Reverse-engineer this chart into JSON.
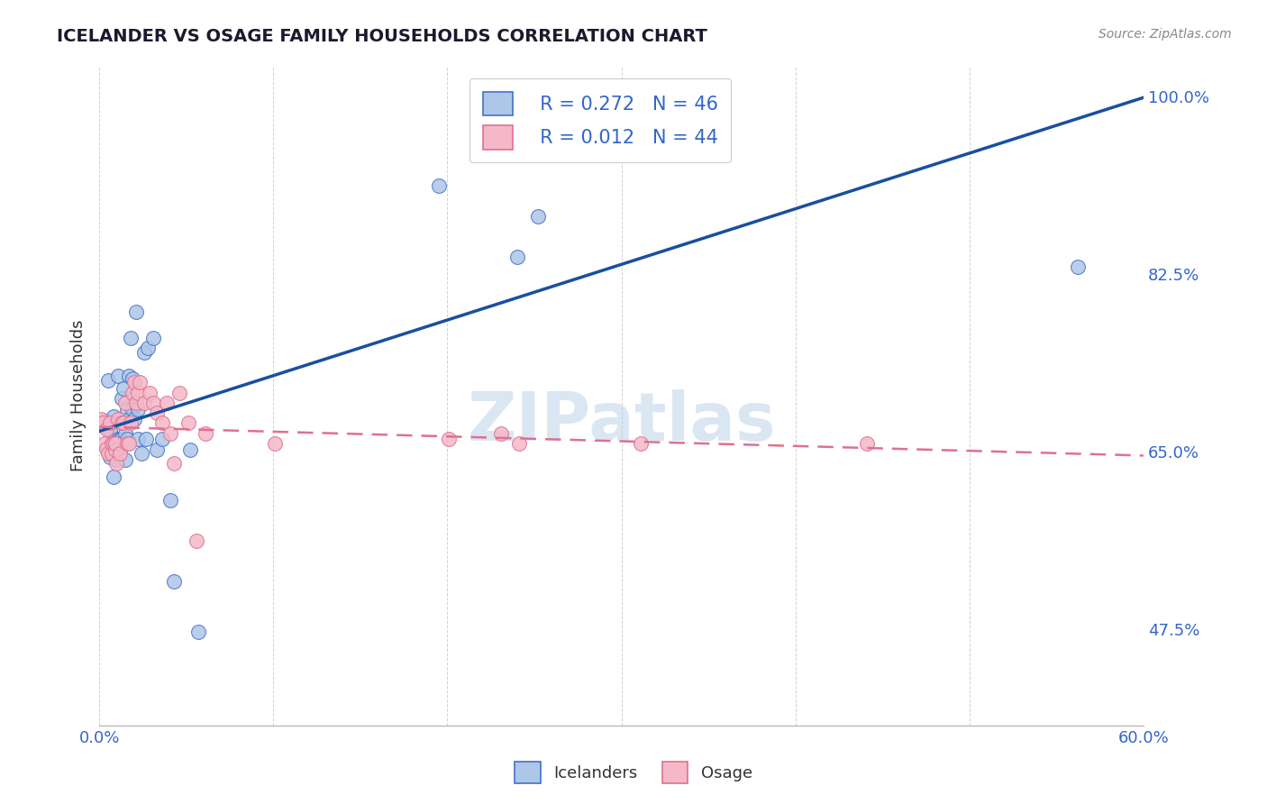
{
  "title": "ICELANDER VS OSAGE FAMILY HOUSEHOLDS CORRELATION CHART",
  "source": "Source: ZipAtlas.com",
  "ylabel": "Family Households",
  "xlim": [
    0.0,
    0.6
  ],
  "ylim": [
    0.38,
    1.03
  ],
  "xtick_positions": [
    0.0,
    0.1,
    0.2,
    0.3,
    0.4,
    0.5,
    0.6
  ],
  "xticklabels": [
    "0.0%",
    "",
    "",
    "",
    "",
    "",
    "60.0%"
  ],
  "ytick_positions": [
    0.475,
    0.65,
    0.825,
    1.0
  ],
  "yticklabels": [
    "47.5%",
    "65.0%",
    "82.5%",
    "100.0%"
  ],
  "legend_r_iceland": "R = 0.272",
  "legend_n_iceland": "N = 46",
  "legend_r_osage": "R = 0.012",
  "legend_n_osage": "N = 44",
  "iceland_fill_color": "#aec6e8",
  "iceland_edge_color": "#4472c4",
  "osage_fill_color": "#f4b8c8",
  "osage_edge_color": "#e07090",
  "iceland_line_color": "#1a4fa0",
  "osage_line_color": "#e07090",
  "watermark": "ZIPatlas",
  "background_color": "#ffffff",
  "grid_color": "#cccccc",
  "title_color": "#1a1a2e",
  "source_color": "#888888",
  "axis_label_color": "#333333",
  "tick_color": "#3366cc",
  "iceland_scatter_x": [
    0.003,
    0.005,
    0.006,
    0.006,
    0.007,
    0.008,
    0.008,
    0.009,
    0.01,
    0.01,
    0.011,
    0.011,
    0.012,
    0.012,
    0.013,
    0.013,
    0.014,
    0.015,
    0.015,
    0.016,
    0.016,
    0.017,
    0.017,
    0.018,
    0.019,
    0.019,
    0.02,
    0.021,
    0.022,
    0.022,
    0.024,
    0.026,
    0.027,
    0.028,
    0.031,
    0.033,
    0.036,
    0.041,
    0.043,
    0.052,
    0.057,
    0.195,
    0.24,
    0.248,
    0.252,
    0.562
  ],
  "iceland_scatter_y": [
    0.68,
    0.72,
    0.67,
    0.645,
    0.65,
    0.625,
    0.685,
    0.658,
    0.642,
    0.652,
    0.662,
    0.725,
    0.662,
    0.652,
    0.702,
    0.662,
    0.712,
    0.668,
    0.642,
    0.692,
    0.662,
    0.682,
    0.725,
    0.762,
    0.692,
    0.722,
    0.682,
    0.788,
    0.692,
    0.662,
    0.648,
    0.748,
    0.662,
    0.752,
    0.762,
    0.652,
    0.662,
    0.602,
    0.522,
    0.652,
    0.472,
    0.912,
    0.842,
    0.998,
    0.882,
    0.832
  ],
  "osage_scatter_x": [
    0.001,
    0.002,
    0.003,
    0.004,
    0.004,
    0.005,
    0.006,
    0.007,
    0.007,
    0.008,
    0.009,
    0.009,
    0.01,
    0.011,
    0.012,
    0.013,
    0.014,
    0.015,
    0.016,
    0.017,
    0.018,
    0.019,
    0.02,
    0.021,
    0.022,
    0.023,
    0.026,
    0.029,
    0.031,
    0.033,
    0.036,
    0.039,
    0.041,
    0.043,
    0.046,
    0.051,
    0.056,
    0.061,
    0.101,
    0.201,
    0.231,
    0.241,
    0.311,
    0.441
  ],
  "osage_scatter_y": [
    0.682,
    0.678,
    0.658,
    0.653,
    0.672,
    0.648,
    0.678,
    0.648,
    0.658,
    0.658,
    0.652,
    0.658,
    0.638,
    0.682,
    0.648,
    0.678,
    0.678,
    0.698,
    0.658,
    0.658,
    0.678,
    0.708,
    0.718,
    0.698,
    0.708,
    0.718,
    0.698,
    0.708,
    0.698,
    0.688,
    0.678,
    0.698,
    0.668,
    0.638,
    0.708,
    0.678,
    0.562,
    0.668,
    0.658,
    0.662,
    0.668,
    0.658,
    0.658,
    0.658
  ]
}
